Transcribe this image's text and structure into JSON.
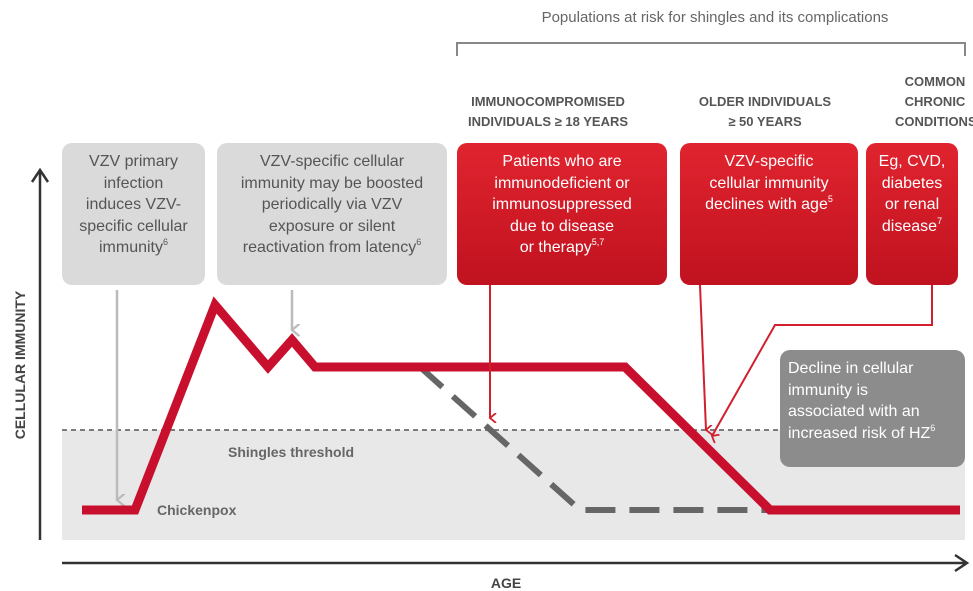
{
  "header": {
    "bracket_label": "Populations at risk for shingles and its complications"
  },
  "groups": [
    {
      "title_lines": [
        "IMMUNOCOMPROMISED",
        "INDIVIDUALS ≥ 18 YEARS"
      ],
      "box_lines": [
        {
          "text": "Patients who are"
        },
        {
          "text": "immunodeficient or"
        },
        {
          "text": "immunosuppressed"
        },
        {
          "text": "due to disease"
        },
        {
          "text": "or therapy",
          "sup": "5,7"
        }
      ]
    },
    {
      "title_lines": [
        "OLDER INDIVIDUALS",
        "≥ 50 YEARS"
      ],
      "box_lines": [
        {
          "text": "VZV-specific"
        },
        {
          "text": "cellular immunity"
        },
        {
          "text": "declines with age",
          "sup": "5"
        }
      ]
    },
    {
      "title_lines": [
        "COMMON",
        "CHRONIC",
        "CONDITIONS"
      ],
      "box_lines": [
        {
          "text": "Eg, CVD,"
        },
        {
          "text": "diabetes"
        },
        {
          "text": "or renal"
        },
        {
          "text": "disease",
          "sup": "7"
        }
      ]
    }
  ],
  "gray_boxes": [
    {
      "lines": [
        {
          "text": "VZV primary"
        },
        {
          "text": "infection"
        },
        {
          "text": "induces VZV-"
        },
        {
          "text": "specific cellular"
        },
        {
          "text": "immunity",
          "sup": "6"
        }
      ]
    },
    {
      "lines": [
        {
          "text": "VZV-specific cellular"
        },
        {
          "text": "immunity may be boosted"
        },
        {
          "text": "periodically via VZV"
        },
        {
          "text": "exposure or silent"
        },
        {
          "text": "reactivation from latency",
          "sup": "6"
        }
      ]
    },
    {
      "lines": [
        {
          "text": "Decline in cellular"
        },
        {
          "text": "immunity is"
        },
        {
          "text": "associated with an"
        },
        {
          "text": "increased risk of HZ",
          "sup": "6"
        }
      ]
    }
  ],
  "labels": {
    "threshold": "Shingles threshold",
    "chickenpox": "Chickenpox",
    "y_axis": "CELLULAR IMMUNITY",
    "x_axis": "AGE"
  }
}
